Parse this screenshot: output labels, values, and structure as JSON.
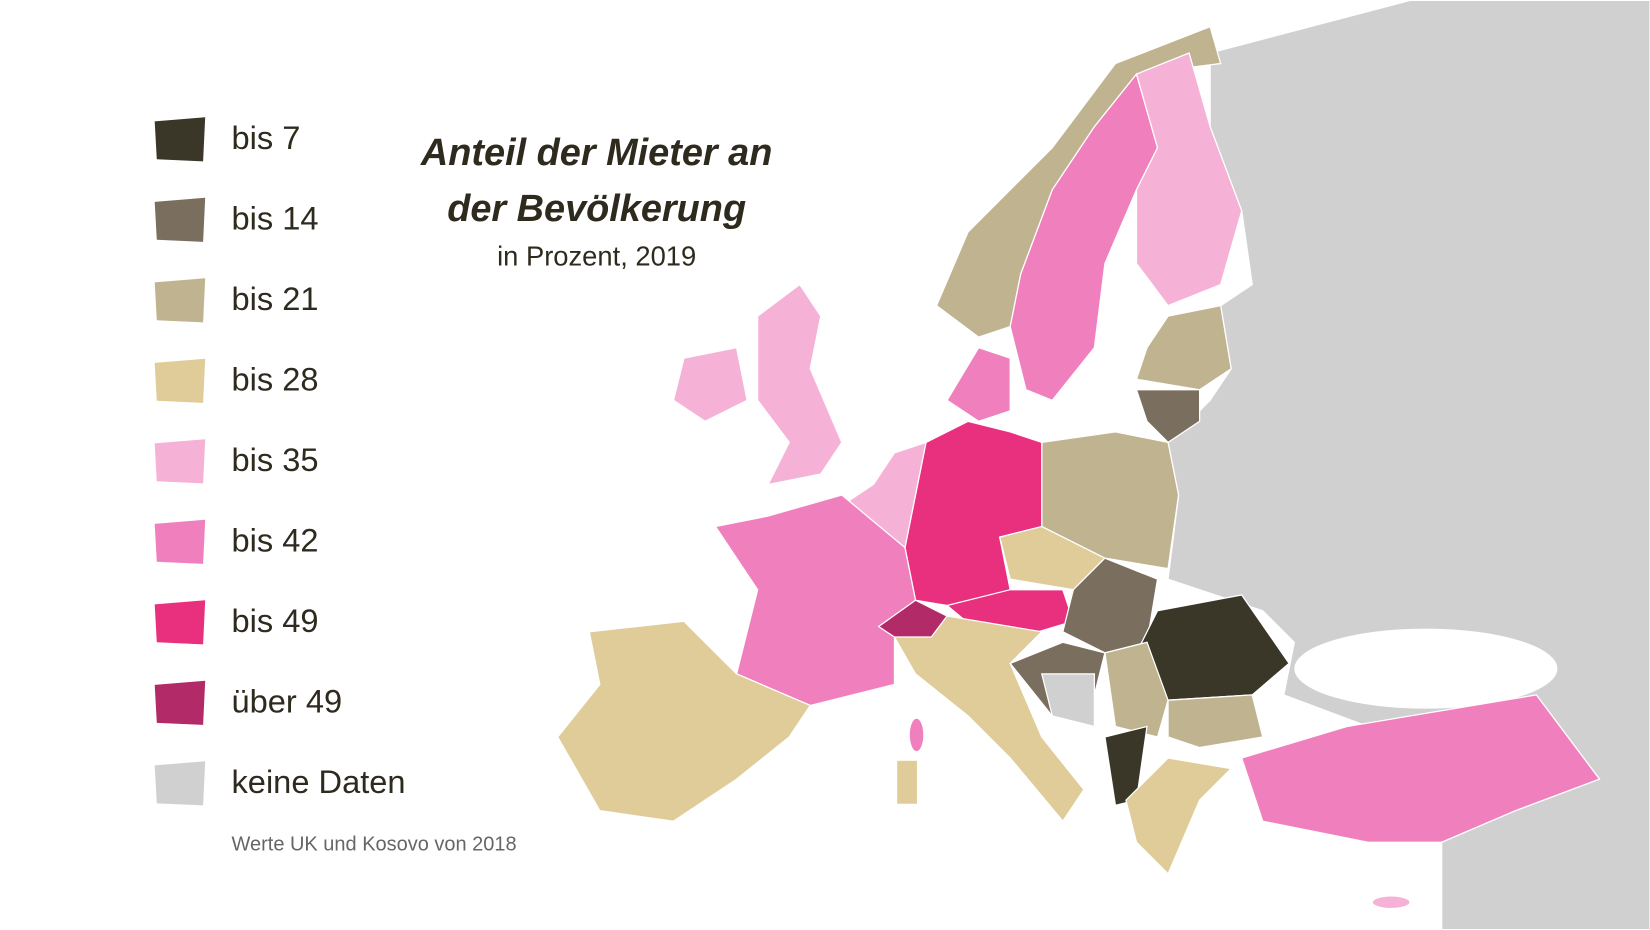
{
  "header": {
    "title_lines": [
      "Anteil der Mieter an",
      "der Bevölkerung"
    ],
    "subtitle": "in Prozent, 2019"
  },
  "legend": {
    "items": [
      {
        "label": "bis 7",
        "color": "#3a3628"
      },
      {
        "label": "bis 14",
        "color": "#7a6e5e"
      },
      {
        "label": "bis 21",
        "color": "#c0b38f"
      },
      {
        "label": "bis 28",
        "color": "#e0cc98"
      },
      {
        "label": "bis 35",
        "color": "#f5b1d6"
      },
      {
        "label": "bis 42",
        "color": "#f07fbd"
      },
      {
        "label": "bis 49",
        "color": "#e8307f"
      },
      {
        "label": "über 49",
        "color": "#b22a67"
      },
      {
        "label": "keine Daten",
        "color": "#d0d0d0"
      }
    ]
  },
  "footnote": "Werte UK und Kosovo von 2018"
}
